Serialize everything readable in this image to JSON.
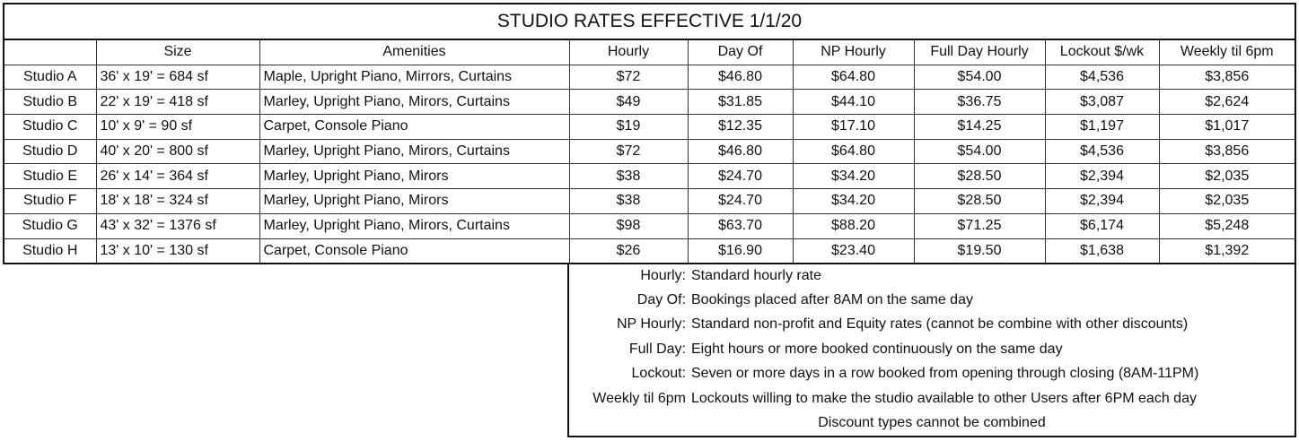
{
  "title": "STUDIO RATES EFFECTIVE 1/1/20",
  "columns": [
    "",
    "Size",
    "Amenities",
    "Hourly",
    "Day Of",
    "NP Hourly",
    "Full Day Hourly",
    "Lockout $/wk",
    "Weekly til 6pm"
  ],
  "rows": [
    [
      "Studio A",
      "36' x 19' = 684 sf",
      "Maple, Upright Piano, Mirrors, Curtains",
      "$72",
      "$46.80",
      "$64.80",
      "$54.00",
      "$4,536",
      "$3,856"
    ],
    [
      "Studio B",
      "22' x 19' = 418 sf",
      "Marley, Upright Piano, Mirors, Curtains",
      "$49",
      "$31.85",
      "$44.10",
      "$36.75",
      "$3,087",
      "$2,624"
    ],
    [
      "Studio C",
      "10' x 9' = 90 sf",
      "Carpet, Console Piano",
      "$19",
      "$12.35",
      "$17.10",
      "$14.25",
      "$1,197",
      "$1,017"
    ],
    [
      "Studio D",
      "40' x 20' = 800 sf",
      "Marley, Upright Piano, Mirors, Curtains",
      "$72",
      "$46.80",
      "$64.80",
      "$54.00",
      "$4,536",
      "$3,856"
    ],
    [
      "Studio E",
      "26' x 14' = 364 sf",
      "Marley, Upright Piano, Mirors",
      "$38",
      "$24.70",
      "$34.20",
      "$28.50",
      "$2,394",
      "$2,035"
    ],
    [
      "Studio F",
      "18' x 18' = 324 sf",
      "Marley, Upright Piano, Mirors",
      "$38",
      "$24.70",
      "$34.20",
      "$28.50",
      "$2,394",
      "$2,035"
    ],
    [
      "Studio G",
      "43' x 32' = 1376 sf",
      "Marley, Upright Piano, Mirors, Curtains",
      "$98",
      "$63.70",
      "$88.20",
      "$71.25",
      "$6,174",
      "$5,248"
    ],
    [
      "Studio H",
      "13' x 10' = 130 sf",
      "Carpet, Console Piano",
      "$26",
      "$16.90",
      "$23.40",
      "$19.50",
      "$1,638",
      "$1,392"
    ]
  ],
  "legend": [
    {
      "key": "Hourly:",
      "text": "Standard hourly rate"
    },
    {
      "key": "Day Of:",
      "text": "Bookings placed after 8AM on the same day"
    },
    {
      "key": "NP Hourly:",
      "text": "Standard non-profit and Equity rates (cannot be combine with other discounts)"
    },
    {
      "key": "Full Day:",
      "text": "Eight hours or more booked continuously on the same day"
    },
    {
      "key": "Lockout:",
      "text": "Seven or more days in a row booked from opening through closing (8AM-11PM)"
    },
    {
      "key": "Weekly til 6pm",
      "text": "Lockouts willing to make the studio available to other Users after 6PM each day"
    }
  ],
  "legend_footer": "Discount types cannot be combined"
}
